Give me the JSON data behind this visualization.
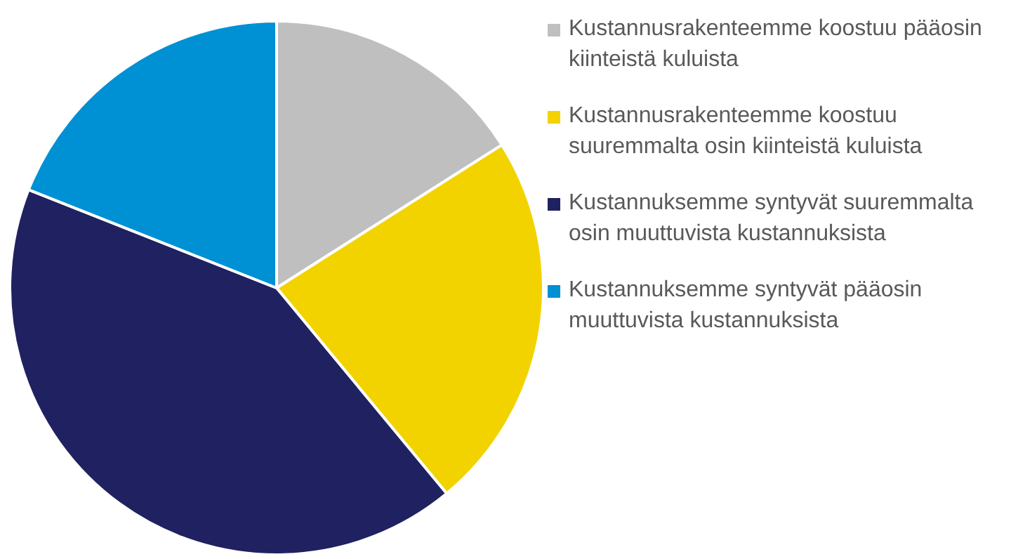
{
  "chart_data": {
    "type": "pie",
    "categories": [
      "Kustannusrakenteemme koostuu pääosin kiinteistä kuluista",
      "Kustannusrakenteemme koostuu suuremmalta osin kiinteistä kuluista",
      "Kustannuksemme syntyvät suuremmalta osin muuttuvista kustannuksista",
      "Kustannuksemme syntyvät pääosin muuttuvista kustannuksista"
    ],
    "values": [
      16,
      23,
      42,
      19
    ],
    "colors": [
      "#bfbfbf",
      "#f2d300",
      "#1f2160",
      "#0090d4"
    ],
    "legend": "right"
  }
}
